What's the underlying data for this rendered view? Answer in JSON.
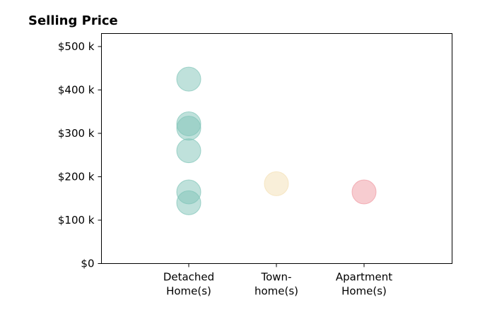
{
  "chart_data": {
    "type": "scatter",
    "title": "Selling Price",
    "xlabel": "",
    "ylabel": "",
    "categories": [
      [
        "Detached",
        "Home(s)"
      ],
      [
        "Town-",
        "home(s)"
      ],
      [
        "Apartment",
        "Home(s)"
      ]
    ],
    "ylim": [
      0,
      530000
    ],
    "yticks": [
      0,
      100000,
      200000,
      300000,
      400000,
      500000
    ],
    "ytick_labels": [
      "$0",
      "$100 k",
      "$200 k",
      "$300 k",
      "$400 k",
      "$500 k"
    ],
    "grid": false,
    "series": [
      {
        "category_index": 0,
        "color": "#7fc4b8",
        "values": [
          425000,
          322000,
          312000,
          260000,
          165000,
          140000
        ]
      },
      {
        "category_index": 1,
        "color": "#f3dfb4",
        "values": [
          184000
        ]
      },
      {
        "category_index": 2,
        "color": "#ef9aa2",
        "values": [
          165000
        ]
      }
    ]
  }
}
